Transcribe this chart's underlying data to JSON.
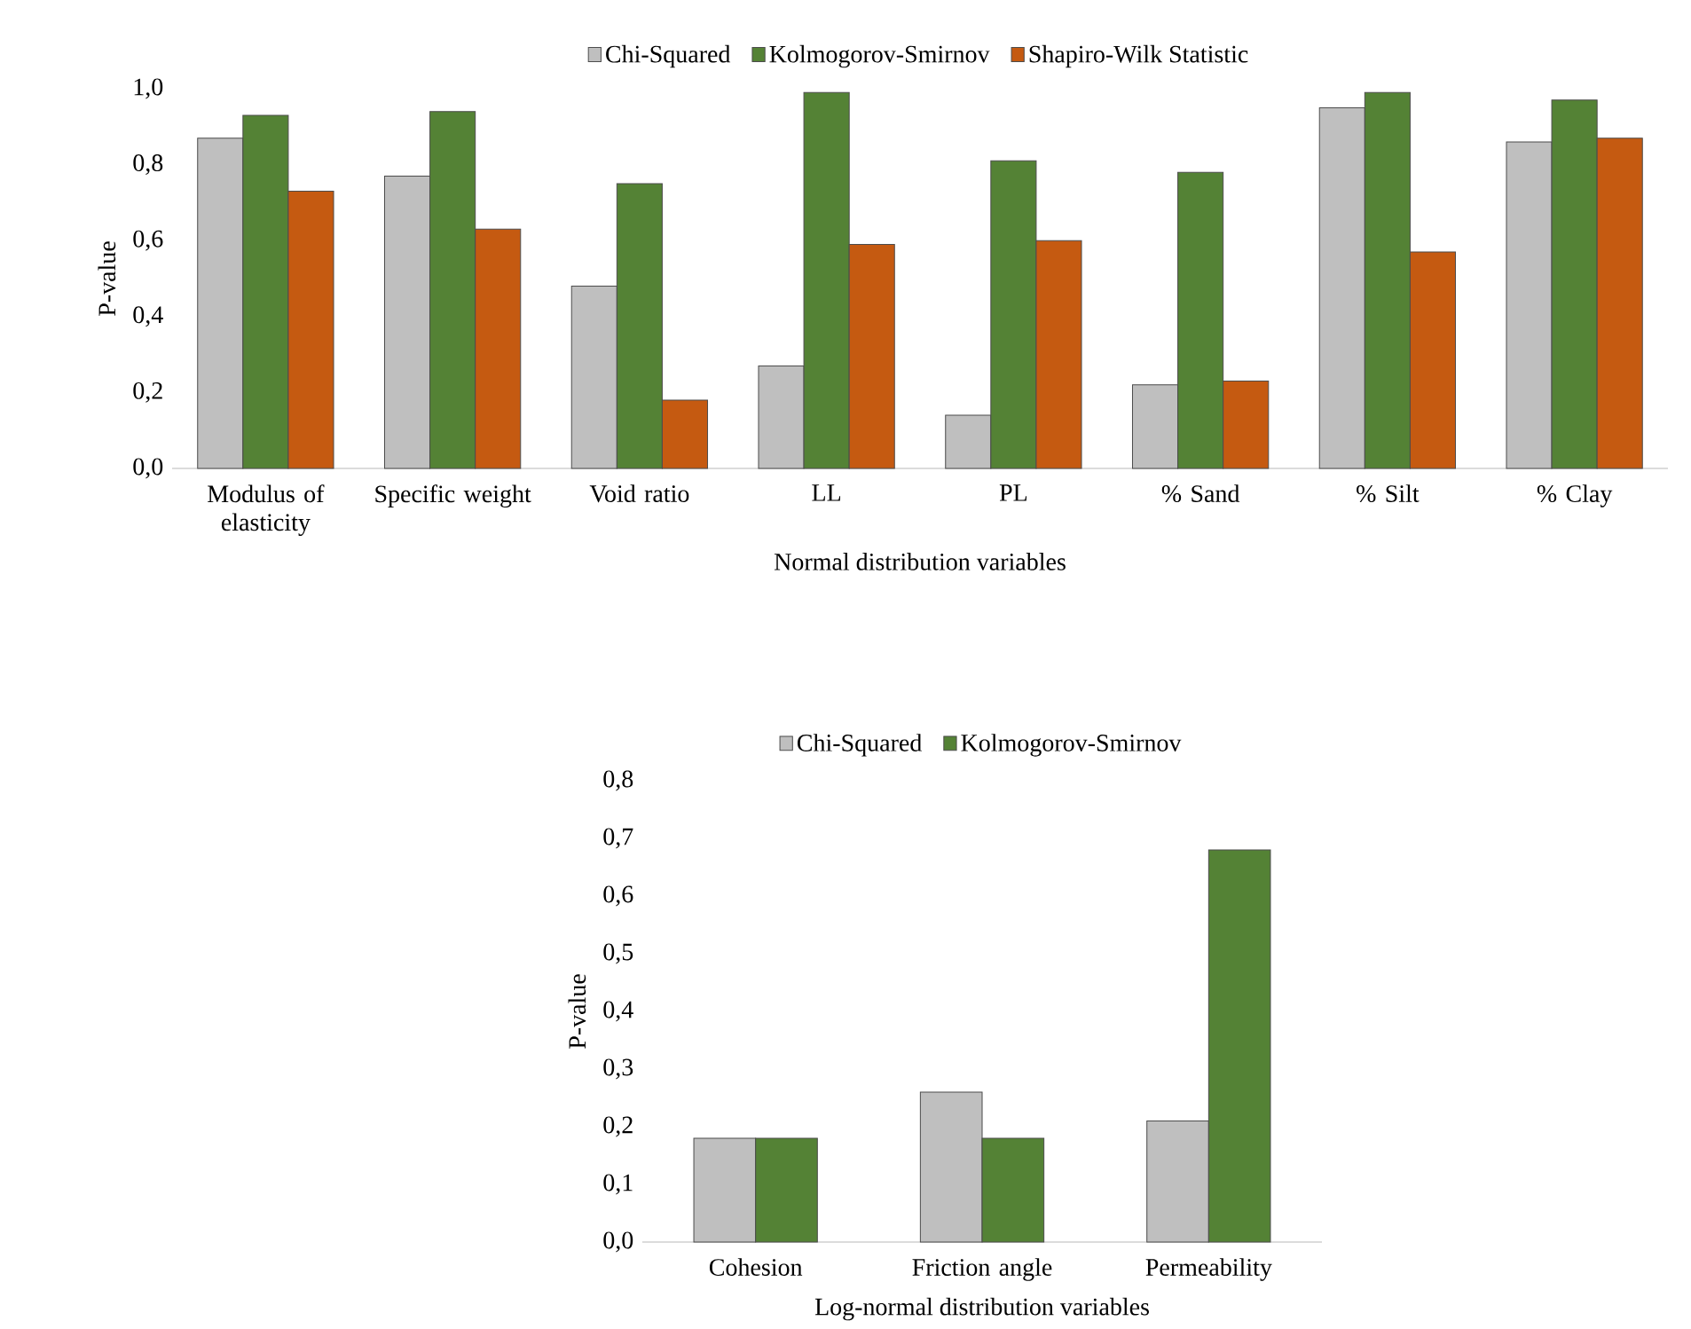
{
  "chart_data": [
    {
      "type": "bar",
      "categories": [
        "Modulus of elasticity",
        "Specific weight",
        "Void ratio",
        "LL",
        "PL",
        "% Sand",
        "% Silt",
        "% Clay"
      ],
      "xlabel": "Normal distribution variables",
      "ylabel": "P-value",
      "series": [
        {
          "name": "Chi-Squared",
          "color": "#bfbfbf",
          "values": [
            0.87,
            0.77,
            0.48,
            0.27,
            0.14,
            0.22,
            0.95,
            0.86
          ]
        },
        {
          "name": "Kolmogorov-Smirnov",
          "color": "#548235",
          "values": [
            0.93,
            0.94,
            0.75,
            0.99,
            0.81,
            0.78,
            0.99,
            0.97
          ]
        },
        {
          "name": "Shapiro-Wilk Statistic",
          "color": "#c55a11",
          "values": [
            0.73,
            0.63,
            0.18,
            0.59,
            0.6,
            0.23,
            0.57,
            0.87
          ]
        }
      ],
      "ylim": [
        0,
        1
      ],
      "yticks": [
        {
          "value": 0,
          "label": "0,0"
        },
        {
          "value": 0.2,
          "label": "0,2"
        },
        {
          "value": 0.4,
          "label": "0,4"
        },
        {
          "value": 0.6,
          "label": "0,6"
        },
        {
          "value": 0.8,
          "label": "0,8"
        },
        {
          "value": 1,
          "label": "1,0"
        }
      ],
      "legend": "top"
    },
    {
      "type": "bar",
      "categories": [
        "Cohesion",
        "Friction angle",
        "Permeability"
      ],
      "xlabel": "Log-normal distribution variables",
      "ylabel": "P-value",
      "series": [
        {
          "name": "Chi-Squared",
          "color": "#bfbfbf",
          "values": [
            0.18,
            0.26,
            0.21
          ]
        },
        {
          "name": "Kolmogorov-Smirnov",
          "color": "#548235",
          "values": [
            0.18,
            0.18,
            0.68
          ]
        }
      ],
      "ylim": [
        0,
        0.8
      ],
      "yticks": [
        {
          "value": 0,
          "label": "0,0"
        },
        {
          "value": 0.1,
          "label": "0,1"
        },
        {
          "value": 0.2,
          "label": "0,2"
        },
        {
          "value": 0.3,
          "label": "0,3"
        },
        {
          "value": 0.4,
          "label": "0,4"
        },
        {
          "value": 0.5,
          "label": "0,5"
        },
        {
          "value": 0.6,
          "label": "0,6"
        },
        {
          "value": 0.7,
          "label": "0,7"
        },
        {
          "value": 0.8,
          "label": "0,8"
        }
      ],
      "legend": "top"
    }
  ]
}
